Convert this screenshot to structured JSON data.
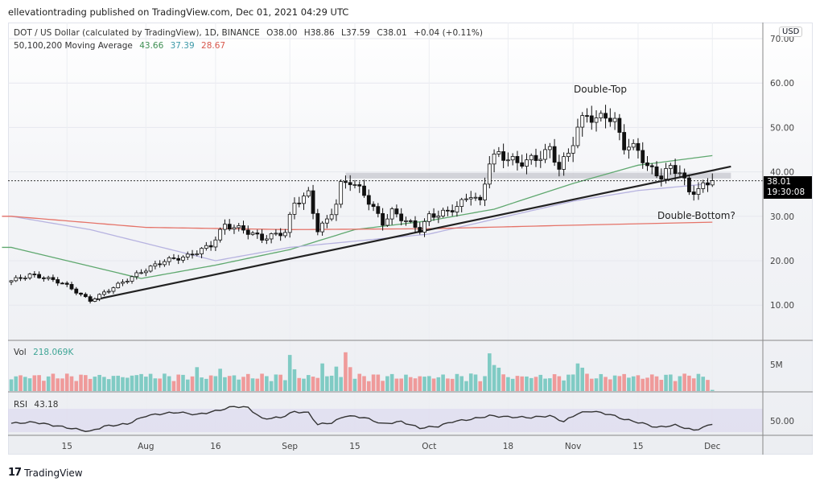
{
  "published": "ellevationtrading published on TradingView.com, Dec 01, 2021 04:29 UTC",
  "symbol_line": {
    "title": "DOT / US Dollar (calculated by TradingView), 1D, BINANCE",
    "open": "O38.00",
    "high": "H38.86",
    "low": "L37.59",
    "close": "C38.01",
    "change": "+0.04 (+0.11%)"
  },
  "ma_line": {
    "label": "50,100,200 Moving Average",
    "ma50": "43.66",
    "ma100": "37.39",
    "ma200": "28.67"
  },
  "currency_badge": "USD",
  "price_label": {
    "price": "38.01",
    "countdown": "19:30:08"
  },
  "annotations": {
    "top": "Double-Top",
    "bottom": "Double-Bottom?"
  },
  "volume_pane": {
    "label": "Vol",
    "value": "218.069K",
    "axis_label": "5M"
  },
  "rsi_pane": {
    "label": "RSI",
    "value": "43.18",
    "axis_label": "50.00"
  },
  "brand": "TradingView",
  "colors": {
    "up_volume": "#80cbc4",
    "down_volume": "#ef9a9a",
    "ma50": "#5fa86f",
    "ma100": "#b7b3e0",
    "ma200": "#e57368",
    "trendline": "#222222"
  },
  "chart_data": {
    "type": "candlestick",
    "title": "DOT / US Dollar, 1D, BINANCE",
    "start_date": "2021-07-03",
    "end_date": "2021-12-01",
    "price_axis": {
      "ticks": [
        "10.00",
        "20.00",
        "30.00",
        "40.00",
        "50.00",
        "60.00",
        "70.00"
      ],
      "range": [
        3,
        72
      ]
    },
    "time_axis": [
      {
        "date": "2021-07-15",
        "label": "15"
      },
      {
        "date": "2021-08-01",
        "label": "Aug"
      },
      {
        "date": "2021-08-16",
        "label": "16"
      },
      {
        "date": "2021-09-01",
        "label": "Sep"
      },
      {
        "date": "2021-09-15",
        "label": "15"
      },
      {
        "date": "2021-10-01",
        "label": "Oct"
      },
      {
        "date": "2021-10-18",
        "label": "18"
      },
      {
        "date": "2021-11-01",
        "label": "Nov"
      },
      {
        "date": "2021-11-15",
        "label": "15"
      },
      {
        "date": "2021-12-01",
        "label": "Dec"
      }
    ],
    "close_keypoints": [
      [
        "2021-07-03",
        15.5
      ],
      [
        "2021-07-07",
        16.8
      ],
      [
        "2021-07-10",
        16.2
      ],
      [
        "2021-07-14",
        15.0
      ],
      [
        "2021-07-20",
        11.0
      ],
      [
        "2021-07-25",
        14.0
      ],
      [
        "2021-07-31",
        17.5
      ],
      [
        "2021-08-05",
        20.0
      ],
      [
        "2021-08-10",
        21.0
      ],
      [
        "2021-08-15",
        23.5
      ],
      [
        "2021-08-18",
        28.0
      ],
      [
        "2021-08-22",
        27.0
      ],
      [
        "2021-08-26",
        25.0
      ],
      [
        "2021-08-31",
        26.5
      ],
      [
        "2021-09-02",
        33.0
      ],
      [
        "2021-09-05",
        35.0
      ],
      [
        "2021-09-07",
        27.0
      ],
      [
        "2021-09-09",
        29.0
      ],
      [
        "2021-09-11",
        33.0
      ],
      [
        "2021-09-12",
        37.0
      ],
      [
        "2021-09-14",
        38.0
      ],
      [
        "2021-09-17",
        35.0
      ],
      [
        "2021-09-21",
        28.5
      ],
      [
        "2021-09-23",
        31.0
      ],
      [
        "2021-09-26",
        29.0
      ],
      [
        "2021-09-29",
        27.0
      ],
      [
        "2021-10-01",
        30.0
      ],
      [
        "2021-10-05",
        31.0
      ],
      [
        "2021-10-08",
        33.0
      ],
      [
        "2021-10-10",
        35.0
      ],
      [
        "2021-10-12",
        33.0
      ],
      [
        "2021-10-14",
        42.5
      ],
      [
        "2021-10-16",
        44.0
      ],
      [
        "2021-10-20",
        42.0
      ],
      [
        "2021-10-24",
        43.0
      ],
      [
        "2021-10-27",
        45.0
      ],
      [
        "2021-10-29",
        41.0
      ],
      [
        "2021-10-31",
        44.0
      ],
      [
        "2021-11-02",
        50.0
      ],
      [
        "2021-11-04",
        53.0
      ],
      [
        "2021-11-06",
        51.5
      ],
      [
        "2021-11-08",
        53.0
      ],
      [
        "2021-11-10",
        51.0
      ],
      [
        "2021-11-12",
        46.0
      ],
      [
        "2021-11-15",
        45.0
      ],
      [
        "2021-11-17",
        41.0
      ],
      [
        "2021-11-20",
        39.0
      ],
      [
        "2021-11-22",
        41.0
      ],
      [
        "2021-11-24",
        40.0
      ],
      [
        "2021-11-26",
        35.5
      ],
      [
        "2021-11-28",
        36.0
      ],
      [
        "2021-11-30",
        37.5
      ],
      [
        "2021-12-01",
        38.01
      ]
    ],
    "moving_averages": [
      {
        "name": "MA50",
        "last": 43.66,
        "points": [
          [
            "2021-07-03",
            23
          ],
          [
            "2021-07-31",
            16
          ],
          [
            "2021-08-16",
            19
          ],
          [
            "2021-09-01",
            22.5
          ],
          [
            "2021-09-15",
            27
          ],
          [
            "2021-10-01",
            29
          ],
          [
            "2021-10-15",
            31.6
          ],
          [
            "2021-11-01",
            37.4
          ],
          [
            "2021-11-15",
            41.5
          ],
          [
            "2021-12-01",
            43.66
          ]
        ]
      },
      {
        "name": "MA100",
        "last": 37.39,
        "points": [
          [
            "2021-07-03",
            30
          ],
          [
            "2021-07-20",
            27
          ],
          [
            "2021-08-16",
            20
          ],
          [
            "2021-09-01",
            23
          ],
          [
            "2021-10-01",
            26
          ],
          [
            "2021-11-01",
            33.4
          ],
          [
            "2021-11-15",
            35.8
          ],
          [
            "2021-12-01",
            37.39
          ]
        ]
      },
      {
        "name": "MA200",
        "last": 28.67,
        "points": [
          [
            "2021-07-03",
            30
          ],
          [
            "2021-08-01",
            27.5
          ],
          [
            "2021-09-01",
            27
          ],
          [
            "2021-10-01",
            27.2
          ],
          [
            "2021-11-01",
            28
          ],
          [
            "2021-12-01",
            28.67
          ]
        ]
      }
    ],
    "trendline": [
      [
        "2021-07-20",
        11.0
      ],
      [
        "2021-12-05",
        41.2
      ]
    ],
    "resistance_zone": {
      "from": "2021-09-13",
      "to": "2021-12-05",
      "low": 38.5,
      "high": 39.8
    },
    "current_price": 38.01,
    "volume": {
      "unit": "M",
      "base": 1.6,
      "spikes": [
        [
          "2021-07-09",
          3.0
        ],
        [
          "2021-07-31",
          3.2
        ],
        [
          "2021-08-12",
          4.5
        ],
        [
          "2021-08-17",
          4.2
        ],
        [
          "2021-09-01",
          6.8
        ],
        [
          "2021-09-02",
          4.1
        ],
        [
          "2021-09-08",
          5.2
        ],
        [
          "2021-09-11",
          4.6
        ],
        [
          "2021-09-13",
          7.3
        ],
        [
          "2021-09-14",
          4.5
        ],
        [
          "2021-10-10",
          3.3
        ],
        [
          "2021-10-14",
          7.1
        ],
        [
          "2021-10-15",
          4.9
        ],
        [
          "2021-10-16",
          4.4
        ],
        [
          "2021-11-02",
          5.2
        ],
        [
          "2021-11-03",
          4.4
        ],
        [
          "2021-11-12",
          3.2
        ],
        [
          "2021-11-26",
          2.9
        ],
        [
          "2021-12-01",
          0.22
        ]
      ]
    },
    "rsi": {
      "range": [
        0,
        100
      ],
      "band": [
        30,
        70
      ],
      "points": [
        [
          "2021-07-03",
          45
        ],
        [
          "2021-07-08",
          47
        ],
        [
          "2021-07-20",
          31
        ],
        [
          "2021-07-23",
          40
        ],
        [
          "2021-07-28",
          44
        ],
        [
          "2021-08-01",
          58
        ],
        [
          "2021-08-05",
          62
        ],
        [
          "2021-08-08",
          64
        ],
        [
          "2021-08-12",
          60
        ],
        [
          "2021-08-16",
          66
        ],
        [
          "2021-08-20",
          74
        ],
        [
          "2021-08-23",
          72
        ],
        [
          "2021-08-26",
          53
        ],
        [
          "2021-08-30",
          55
        ],
        [
          "2021-09-02",
          65
        ],
        [
          "2021-09-05",
          63
        ],
        [
          "2021-09-07",
          43
        ],
        [
          "2021-09-10",
          46
        ],
        [
          "2021-09-13",
          58
        ],
        [
          "2021-09-17",
          55
        ],
        [
          "2021-09-21",
          44
        ],
        [
          "2021-09-25",
          48
        ],
        [
          "2021-09-29",
          37
        ],
        [
          "2021-10-03",
          40
        ],
        [
          "2021-10-06",
          48
        ],
        [
          "2021-10-10",
          52
        ],
        [
          "2021-10-14",
          58
        ],
        [
          "2021-10-18",
          56
        ],
        [
          "2021-10-23",
          55
        ],
        [
          "2021-10-27",
          58
        ],
        [
          "2021-10-30",
          48
        ],
        [
          "2021-11-02",
          62
        ],
        [
          "2021-11-05",
          66
        ],
        [
          "2021-11-09",
          60
        ],
        [
          "2021-11-12",
          52
        ],
        [
          "2021-11-16",
          45
        ],
        [
          "2021-11-19",
          38
        ],
        [
          "2021-11-23",
          42
        ],
        [
          "2021-11-27",
          33
        ],
        [
          "2021-12-01",
          43.18
        ]
      ]
    }
  }
}
